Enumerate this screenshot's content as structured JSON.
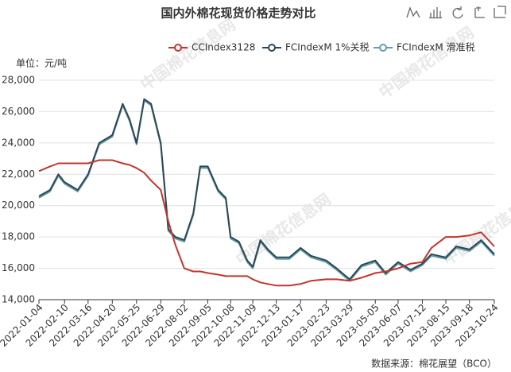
{
  "chart_data": {
    "type": "line",
    "title": "国内外棉花现货价格走势对比",
    "y_unit": "单位：元/吨",
    "source": "数据来源：棉花展望（BCO）",
    "watermark": "中国棉花信息网",
    "x": [
      "2022-01-04",
      "2022-01-20",
      "2022-02-01",
      "2022-02-10",
      "2022-03-01",
      "2022-03-16",
      "2022-04-01",
      "2022-04-20",
      "2022-05-05",
      "2022-05-15",
      "2022-05-25",
      "2022-06-05",
      "2022-06-15",
      "2022-06-29",
      "2022-07-10",
      "2022-07-20",
      "2022-08-02",
      "2022-08-15",
      "2022-08-25",
      "2022-09-05",
      "2022-09-20",
      "2022-10-01",
      "2022-10-08",
      "2022-10-20",
      "2022-11-01",
      "2022-11-09",
      "2022-11-20",
      "2022-12-01",
      "2022-12-13",
      "2023-01-01",
      "2023-01-17",
      "2023-02-01",
      "2023-02-23",
      "2023-03-10",
      "2023-03-29",
      "2023-04-15",
      "2023-05-05",
      "2023-05-20",
      "2023-06-07",
      "2023-06-25",
      "2023-07-12",
      "2023-07-25",
      "2023-08-15",
      "2023-08-30",
      "2023-09-18",
      "2023-10-05",
      "2023-10-24"
    ],
    "series": [
      {
        "name": "CCIndex3128",
        "color": "#c23531",
        "values": [
          22200,
          22500,
          22700,
          22700,
          22700,
          22700,
          22900,
          22900,
          22700,
          22600,
          22400,
          22100,
          21600,
          21000,
          19000,
          17500,
          16000,
          15800,
          15800,
          15700,
          15600,
          15500,
          15500,
          15500,
          15500,
          15300,
          15100,
          15000,
          14900,
          14900,
          15000,
          15200,
          15300,
          15300,
          15200,
          15400,
          15700,
          15800,
          16000,
          16300,
          16400,
          17300,
          18000,
          18000,
          18100,
          18300,
          17400
        ]
      },
      {
        "name": "FCIndexM 1%关税",
        "color": "#2f4554",
        "values": [
          20600,
          21000,
          22000,
          21500,
          21000,
          22000,
          24000,
          24500,
          26500,
          25500,
          24000,
          26800,
          26500,
          24000,
          18500,
          18000,
          17800,
          19500,
          22500,
          22500,
          21000,
          20500,
          18000,
          17700,
          16500,
          16100,
          17800,
          17200,
          16700,
          16700,
          17300,
          16800,
          16500,
          16000,
          15300,
          16200,
          16500,
          15700,
          16400,
          15900,
          16300,
          16900,
          16700,
          17400,
          17200,
          17800,
          16900
        ]
      },
      {
        "name": "FCIndexM 滑准税",
        "color": "#61a0a8",
        "values": [
          20500,
          20900,
          21900,
          21400,
          20900,
          21900,
          23900,
          24400,
          26400,
          25400,
          23900,
          26700,
          26400,
          23900,
          18400,
          17900,
          17700,
          19400,
          22400,
          22400,
          20900,
          20400,
          17900,
          17600,
          16400,
          16000,
          17700,
          17100,
          16600,
          16600,
          17200,
          16700,
          16400,
          15900,
          15200,
          16100,
          16400,
          15600,
          16300,
          15800,
          16200,
          16800,
          16600,
          17300,
          17100,
          17700,
          16800
        ]
      }
    ],
    "xlim": [
      "2022-01-04",
      "2023-10-24"
    ],
    "xticks": [
      "2022-01-04",
      "2022-02-10",
      "2022-03-16",
      "2022-04-20",
      "2022-05-25",
      "2022-06-29",
      "2022-08-02",
      "2022-09-05",
      "2022-10-08",
      "2022-11-09",
      "2022-12-13",
      "2023-01-17",
      "2023-02-23",
      "2023-03-29",
      "2023-05-05",
      "2023-06-07",
      "2023-07-12",
      "2023-08-15",
      "2023-09-18",
      "2023-10-24"
    ],
    "ylim": [
      14000,
      28000
    ],
    "yticks": [
      {
        "value": 14000,
        "label": "14,000"
      },
      {
        "value": 16000,
        "label": "16,000"
      },
      {
        "value": 18000,
        "label": "18,000"
      },
      {
        "value": 20000,
        "label": "20,000"
      },
      {
        "value": 22000,
        "label": "22,000"
      },
      {
        "value": 24000,
        "label": "24,000"
      },
      {
        "value": 26000,
        "label": "26,000"
      },
      {
        "value": 28000,
        "label": "28,000"
      }
    ],
    "grid": true
  }
}
